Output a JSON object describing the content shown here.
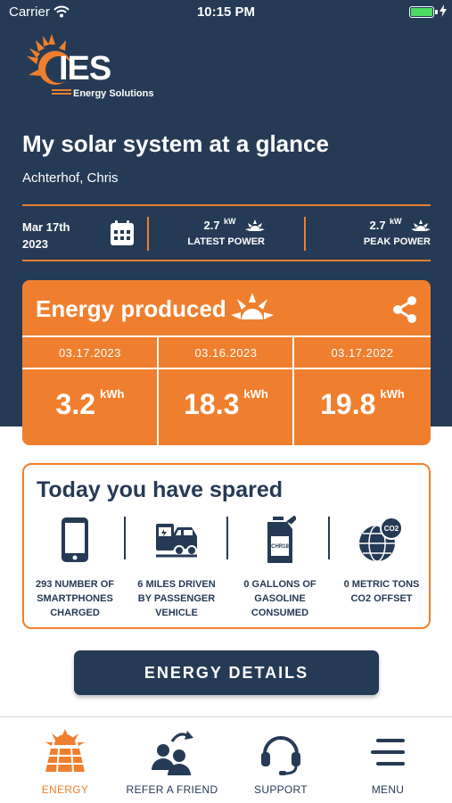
{
  "status_bar": {
    "carrier": "Carrier",
    "time": "10:15 PM"
  },
  "logo": {
    "text": "IES",
    "subtext": "Energy Solutions"
  },
  "header": {
    "title": "My solar system at a glance",
    "user_name": "Achterhof, Chris"
  },
  "stats": {
    "date_line1": "Mar 17th",
    "date_line2": "2023",
    "latest_power": {
      "value": "2.7",
      "unit": "kW",
      "label": "LATEST POWER"
    },
    "peak_power": {
      "value": "2.7",
      "unit": "kW",
      "label": "PEAK POWER"
    }
  },
  "energy_card": {
    "title": "Energy produced",
    "columns": [
      {
        "date": "03.17.2023",
        "value": "3.2",
        "unit": "kWh"
      },
      {
        "date": "03.16.2023",
        "value": "18.3",
        "unit": "kWh"
      },
      {
        "date": "03.17.2022",
        "value": "19.8",
        "unit": "kWh"
      }
    ]
  },
  "spared": {
    "title": "Today you have spared",
    "items": [
      {
        "icon": "smartphone-icon",
        "line1": "293 NUMBER OF",
        "line2": "SMARTPHONES",
        "line3": "CHARGED"
      },
      {
        "icon": "vehicle-icon",
        "line1": "6 MILES DRIVEN",
        "line2": "BY PASSENGER",
        "line3": "VEHICLE"
      },
      {
        "icon": "gas-can-icon",
        "line1": "0 GALLONS OF",
        "line2": "GASOLINE",
        "line3": "CONSUMED",
        "can_label": "CHR18"
      },
      {
        "icon": "globe-co2-icon",
        "line1": "0 METRIC TONS",
        "line2": "CO2 OFFSET",
        "line3": "",
        "bubble_label": "CO2"
      }
    ]
  },
  "energy_details_button": "ENERGY DETAILS",
  "tabs": [
    {
      "label": "ENERGY",
      "icon": "solar-panel-icon",
      "active": true
    },
    {
      "label": "REFER A FRIEND",
      "icon": "refer-friend-icon",
      "active": false
    },
    {
      "label": "SUPPORT",
      "icon": "headset-icon",
      "active": false
    },
    {
      "label": "MENU",
      "icon": "menu-icon",
      "active": false
    }
  ],
  "colors": {
    "navy": "#253a55",
    "orange": "#ef7f2e",
    "battery_green": "#4cd964",
    "white": "#ffffff"
  }
}
